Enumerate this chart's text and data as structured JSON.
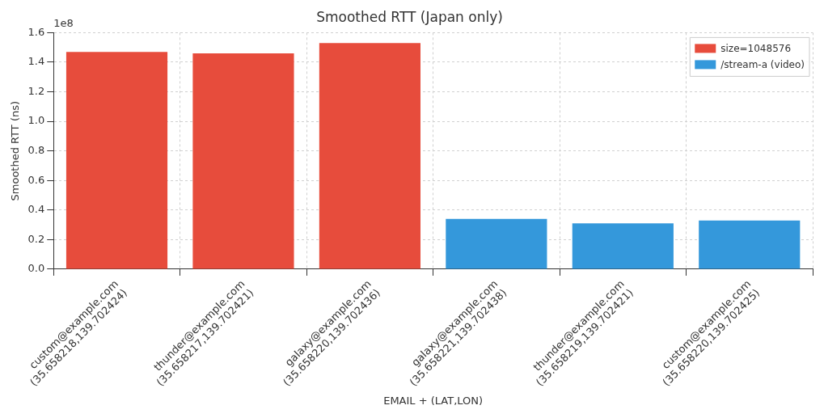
{
  "chart_data": {
    "type": "bar",
    "title": "Smoothed RTT (Japan only)",
    "xlabel": "EMAIL + (LAT,LON)",
    "ylabel": "Smoothed RTT (ns)",
    "categories": [
      "custom@example.com\n(35.658218,139.702424)",
      "thunder@example.com\n(35.658217,139.702421)",
      "galaxy@example.com\n(35.658220,139.702436)",
      "galaxy@example.com\n(35.658221,139.702438)",
      "thunder@example.com\n(35.658219,139.702421)",
      "custom@example.com\n(35.658220,139.702425)"
    ],
    "series": [
      {
        "name": "size=1048576",
        "color": "#e74c3c",
        "values": [
          1.47,
          1.46,
          1.53,
          null,
          null,
          null
        ]
      },
      {
        "name": "/stream-a (video)",
        "color": "#3498db",
        "values": [
          null,
          null,
          null,
          0.34,
          0.31,
          0.33
        ]
      }
    ],
    "ylim": [
      0,
      1.6
    ],
    "yticks": [
      {
        "value": 0,
        "label": "0.0"
      },
      0.2,
      0.4,
      0.6,
      0.8,
      {
        "value": 1,
        "label": "1.0"
      },
      1.2,
      1.4,
      1.6
    ],
    "annotations": [
      "1e8"
    ],
    "grid": true,
    "legend": "top right"
  }
}
